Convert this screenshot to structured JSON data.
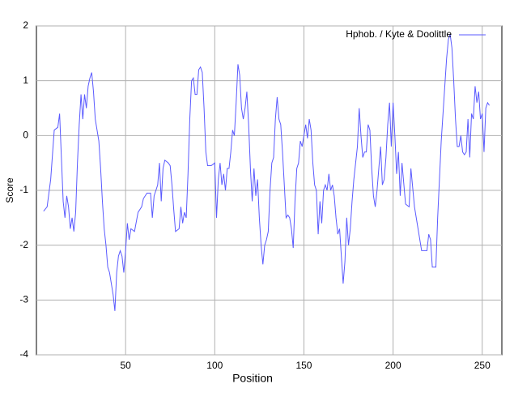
{
  "chart_data": {
    "type": "line",
    "x_label": "Position",
    "y_label": "Score",
    "x": [
      4,
      6,
      8,
      10,
      12,
      13,
      14,
      15,
      16,
      17,
      18,
      19,
      20,
      21,
      22,
      23,
      24,
      25,
      26,
      27,
      28,
      29,
      30,
      31,
      32,
      33,
      34,
      35,
      36,
      37,
      38,
      39,
      40,
      41,
      42,
      43,
      44,
      45,
      46,
      47,
      48,
      49,
      50,
      51,
      52,
      53,
      55,
      57,
      59,
      60,
      62,
      64,
      65,
      66,
      68,
      69,
      70,
      71,
      72,
      74,
      75,
      76,
      77,
      78,
      80,
      81,
      82,
      83,
      84,
      85,
      86,
      87,
      88,
      89,
      90,
      91,
      92,
      93,
      94,
      95,
      96,
      98,
      100,
      101,
      102,
      103,
      104,
      105,
      106,
      107,
      108,
      109,
      110,
      111,
      112,
      113,
      114,
      115,
      116,
      117,
      118,
      119,
      120,
      121,
      122,
      123,
      124,
      125,
      126,
      127,
      128,
      129,
      130,
      131,
      132,
      133,
      134,
      135,
      136,
      137,
      138,
      139,
      140,
      141,
      142,
      143,
      144,
      145,
      146,
      147,
      148,
      149,
      150,
      151,
      152,
      153,
      154,
      155,
      156,
      157,
      158,
      159,
      160,
      161,
      162,
      163,
      164,
      165,
      166,
      167,
      168,
      169,
      170,
      171,
      172,
      173,
      174,
      175,
      176,
      177,
      178,
      179,
      180,
      181,
      182,
      183,
      184,
      185,
      186,
      187,
      188,
      189,
      190,
      191,
      192,
      193,
      194,
      195,
      196,
      197,
      198,
      199,
      200,
      201,
      202,
      203,
      204,
      205,
      207,
      209,
      210,
      212,
      214,
      216,
      219,
      220,
      221,
      222,
      224,
      225,
      226,
      227,
      228,
      229,
      230,
      231,
      232,
      233,
      234,
      235,
      236,
      237,
      238,
      239,
      240,
      241,
      242,
      243,
      244,
      245,
      246,
      247,
      248,
      249,
      250,
      251,
      252,
      253,
      254
    ],
    "series": [
      {
        "name": "Hphob. / Kyte & Doolittle",
        "color": "#5a5aff",
        "values": [
          -1.38,
          -1.3,
          -0.8,
          0.1,
          0.15,
          0.4,
          -0.4,
          -1.2,
          -1.5,
          -1.1,
          -1.3,
          -1.7,
          -1.5,
          -1.75,
          -1.4,
          -0.5,
          0.2,
          0.75,
          0.3,
          0.75,
          0.5,
          0.9,
          1.05,
          1.15,
          0.8,
          0.3,
          0.1,
          -0.1,
          -0.6,
          -1.2,
          -1.7,
          -2.0,
          -2.4,
          -2.5,
          -2.7,
          -2.9,
          -3.2,
          -2.5,
          -2.2,
          -2.1,
          -2.2,
          -2.5,
          -2.1,
          -1.6,
          -1.9,
          -1.7,
          -1.75,
          -1.4,
          -1.3,
          -1.15,
          -1.05,
          -1.05,
          -1.5,
          -1.1,
          -0.9,
          -0.5,
          -1.2,
          -0.6,
          -0.45,
          -0.5,
          -0.55,
          -0.9,
          -1.35,
          -1.75,
          -1.7,
          -1.3,
          -1.6,
          -1.4,
          -1.5,
          -0.7,
          0.3,
          1.0,
          1.05,
          0.75,
          0.75,
          1.2,
          1.25,
          1.15,
          0.5,
          -0.3,
          -0.55,
          -0.55,
          -0.5,
          -1.5,
          -0.8,
          -0.5,
          -0.9,
          -0.7,
          -1.0,
          -0.6,
          -0.6,
          -0.3,
          0.1,
          0.0,
          0.6,
          1.3,
          1.1,
          0.5,
          0.3,
          0.5,
          0.8,
          0.2,
          -0.6,
          -1.2,
          -0.6,
          -1.1,
          -0.8,
          -1.5,
          -2.0,
          -2.35,
          -2.0,
          -1.9,
          -1.75,
          -1.0,
          -0.5,
          -0.4,
          0.3,
          0.7,
          0.3,
          0.2,
          -0.3,
          -0.9,
          -1.5,
          -1.45,
          -1.5,
          -1.7,
          -2.05,
          -1.2,
          -0.6,
          -0.5,
          -0.1,
          -0.2,
          0.0,
          0.2,
          -0.05,
          0.3,
          0.1,
          -0.5,
          -0.9,
          -1.0,
          -1.8,
          -1.2,
          -1.6,
          -1.0,
          -0.9,
          -1.0,
          -0.7,
          -1.0,
          -0.9,
          -1.1,
          -1.5,
          -1.8,
          -1.7,
          -2.2,
          -2.7,
          -2.3,
          -1.5,
          -2.0,
          -1.7,
          -1.2,
          -0.8,
          -0.5,
          -0.2,
          0.5,
          0.0,
          -0.4,
          -0.3,
          -0.3,
          0.2,
          0.1,
          -0.6,
          -1.1,
          -1.3,
          -1.0,
          -0.6,
          -0.2,
          -0.9,
          -0.8,
          -0.4,
          0.2,
          0.6,
          -0.2,
          0.6,
          0.0,
          -0.7,
          -0.3,
          -1.1,
          -0.5,
          -1.25,
          -1.3,
          -0.6,
          -1.3,
          -1.7,
          -2.1,
          -2.1,
          -1.8,
          -1.9,
          -2.4,
          -2.4,
          -1.5,
          -0.8,
          -0.1,
          0.4,
          0.9,
          1.4,
          1.75,
          1.85,
          1.6,
          1.0,
          0.3,
          -0.2,
          -0.2,
          0.0,
          -0.3,
          -0.35,
          -0.3,
          0.3,
          -0.4,
          0.4,
          0.3,
          0.9,
          0.6,
          0.8,
          0.3,
          0.4,
          -0.3,
          0.5,
          0.6,
          0.55
        ]
      }
    ],
    "xlim": [
      0,
      261
    ],
    "ylim": [
      -4,
      2
    ],
    "xticks": [
      50,
      100,
      150,
      200,
      250
    ],
    "yticks": [
      -4,
      -3,
      -2,
      -1,
      0,
      1,
      2
    ],
    "grid": true,
    "legend": "top-right"
  }
}
